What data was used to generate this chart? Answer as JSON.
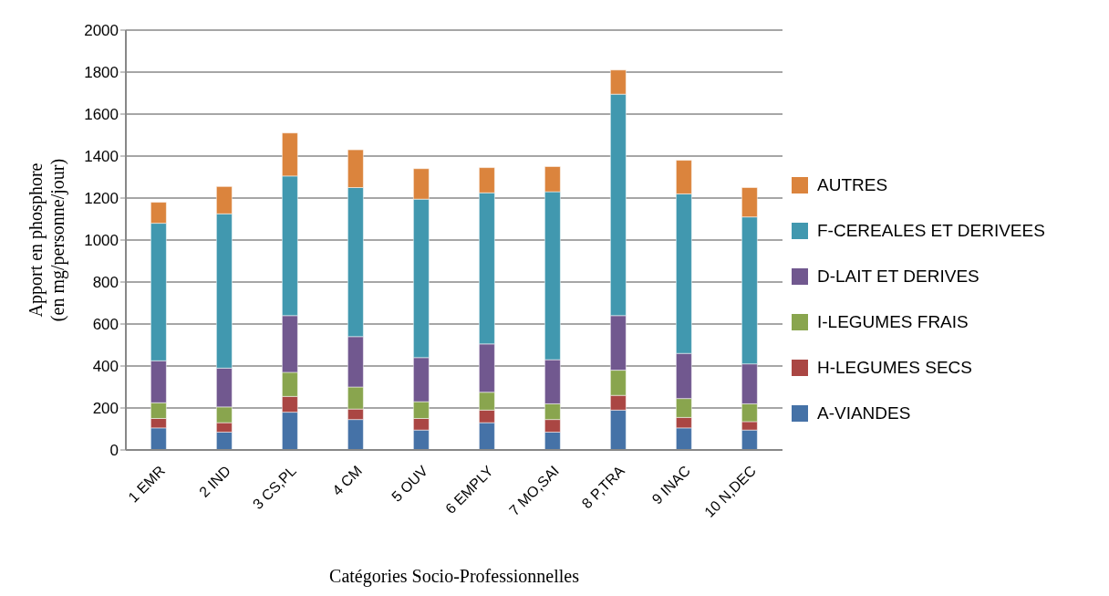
{
  "chart_data": {
    "type": "bar",
    "stacked": true,
    "xlabel": "Catégories Socio-Professionnelles",
    "ylabel": "Apport en phosphore\n(en mg/personne/jour)",
    "categories": [
      "1 EMR",
      "2 IND",
      "3 CS,PL",
      "4 CM",
      "5 OUV",
      "6 EMPLY",
      "7 MO,SAI",
      "8 P,TRA",
      "9 INAC",
      "10 N,DEC"
    ],
    "series": [
      {
        "name": "A-VIANDES",
        "color": "#4572a7",
        "values": [
          105,
          85,
          180,
          145,
          95,
          130,
          85,
          190,
          105,
          95
        ]
      },
      {
        "name": "H-LEGUMES SECS",
        "color": "#aa4643",
        "values": [
          45,
          45,
          75,
          50,
          55,
          60,
          60,
          70,
          50,
          40
        ]
      },
      {
        "name": "I-LEGUMES FRAIS",
        "color": "#89a54e",
        "values": [
          75,
          75,
          115,
          105,
          80,
          85,
          75,
          120,
          90,
          85
        ]
      },
      {
        "name": "D-LAIT ET DERIVES",
        "color": "#71588f",
        "values": [
          200,
          185,
          270,
          240,
          210,
          230,
          210,
          260,
          215,
          190
        ]
      },
      {
        "name": "F-CEREALES ET DERIVEES",
        "color": "#4198af",
        "values": [
          655,
          735,
          665,
          710,
          755,
          720,
          800,
          1055,
          760,
          700
        ]
      },
      {
        "name": "AUTRES",
        "color": "#db843d",
        "values": [
          100,
          130,
          205,
          180,
          145,
          120,
          120,
          115,
          160,
          140
        ]
      }
    ],
    "ylim": [
      0,
      2000
    ],
    "yticks": [
      0,
      200,
      400,
      600,
      800,
      1000,
      1200,
      1400,
      1600,
      1800,
      2000
    ],
    "grid": "y",
    "legend": "right"
  }
}
